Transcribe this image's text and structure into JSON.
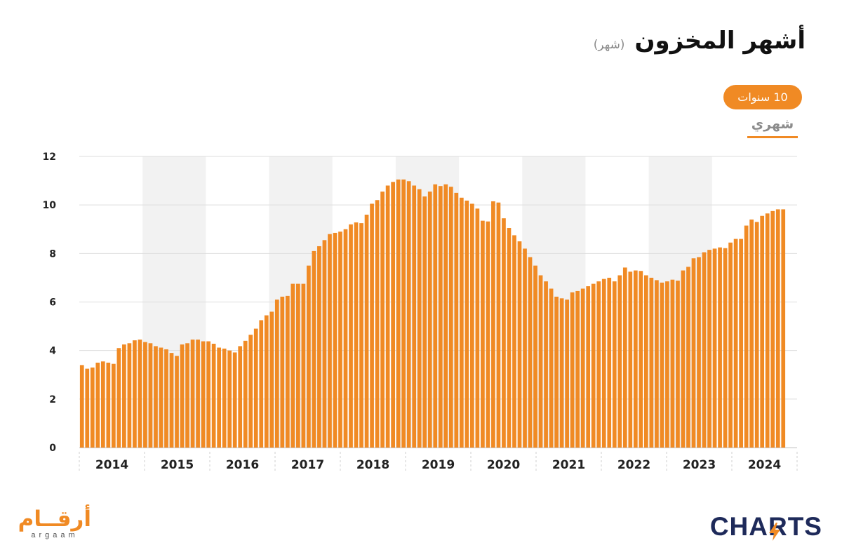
{
  "title": {
    "main": "أشهر المخزون",
    "unit": "(شهر)"
  },
  "controls": {
    "range_label": "10 سنوات",
    "period_label": "شهري"
  },
  "brand": {
    "left_ar": "أرقــام",
    "left_en": "argaam",
    "right": "CHARTS"
  },
  "colors": {
    "bar": "#f08a24",
    "band": "#f2f2f2",
    "grid": "#dddddd",
    "accent": "#f08a24",
    "brand_navy": "#1e2a5a"
  },
  "chart_data": {
    "type": "bar",
    "x_start": "2014-01",
    "frequency": "monthly",
    "ylim": [
      0,
      12
    ],
    "yticks": [
      0,
      2,
      4,
      6,
      8,
      10,
      12
    ],
    "year_labels": [
      "2014",
      "2015",
      "2016",
      "2017",
      "2018",
      "2019",
      "2020",
      "2021",
      "2022",
      "2023",
      "2024"
    ],
    "grid": true,
    "values": [
      3.4,
      3.25,
      3.3,
      3.5,
      3.55,
      3.5,
      3.45,
      4.1,
      4.25,
      4.3,
      4.42,
      4.45,
      4.35,
      4.3,
      4.18,
      4.12,
      4.05,
      3.9,
      3.78,
      4.25,
      4.3,
      4.45,
      4.45,
      4.38,
      4.38,
      4.28,
      4.12,
      4.08,
      4.0,
      3.92,
      4.18,
      4.4,
      4.65,
      4.9,
      5.25,
      5.45,
      5.6,
      6.1,
      6.22,
      6.25,
      6.75,
      6.75,
      6.75,
      7.5,
      8.1,
      8.3,
      8.55,
      8.8,
      8.85,
      8.9,
      9.0,
      9.2,
      9.28,
      9.25,
      9.6,
      10.05,
      10.2,
      10.55,
      10.8,
      10.95,
      11.05,
      11.05,
      10.98,
      10.8,
      10.65,
      10.35,
      10.55,
      10.85,
      10.78,
      10.85,
      10.75,
      10.5,
      10.3,
      10.18,
      10.05,
      9.85,
      9.35,
      9.32,
      10.15,
      10.1,
      9.45,
      9.05,
      8.75,
      8.5,
      8.2,
      7.85,
      7.5,
      7.1,
      6.85,
      6.55,
      6.22,
      6.15,
      6.1,
      6.4,
      6.45,
      6.55,
      6.65,
      6.75,
      6.85,
      6.95,
      7.0,
      6.85,
      7.1,
      7.42,
      7.25,
      7.3,
      7.28,
      7.1,
      7.0,
      6.9,
      6.8,
      6.85,
      6.92,
      6.88,
      7.3,
      7.45,
      7.8,
      7.85,
      8.05,
      8.15,
      8.2,
      8.25,
      8.22,
      8.45,
      8.6,
      8.6,
      9.15,
      9.4,
      9.3,
      9.55,
      9.65,
      9.75,
      9.82,
      9.82
    ]
  }
}
